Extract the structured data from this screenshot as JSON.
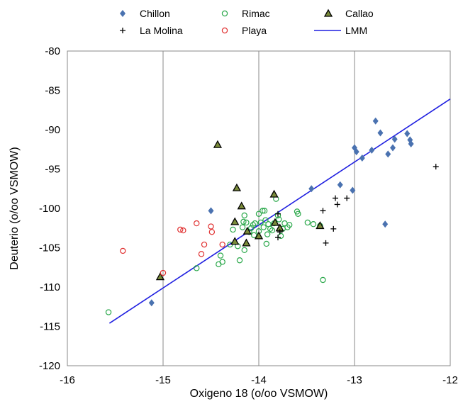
{
  "chart_data": {
    "type": "scatter",
    "xlabel": "Oxigeno 18  (o/oo VSMOW)",
    "ylabel": "Deuterio  (o/oo VSMOW)",
    "xlim": [
      -16,
      -12
    ],
    "ylim": [
      -120,
      -80
    ],
    "x_ticks": [
      -16,
      -15,
      -14,
      -13,
      -12
    ],
    "y_ticks": [
      -80,
      -85,
      -90,
      -95,
      -100,
      -105,
      -110,
      -115,
      -120
    ],
    "grid": "vertical",
    "legend_position": "top",
    "series": [
      {
        "name": "Chillon",
        "marker": "diamond",
        "color": "#4a72b0",
        "points": [
          [
            -15.12,
            -112.0
          ],
          [
            -14.5,
            -100.3
          ],
          [
            -13.45,
            -97.5
          ],
          [
            -13.15,
            -97.0
          ],
          [
            -13.02,
            -97.7
          ],
          [
            -13.0,
            -92.3
          ],
          [
            -12.98,
            -92.8
          ],
          [
            -12.92,
            -93.6
          ],
          [
            -12.82,
            -92.6
          ],
          [
            -12.78,
            -88.9
          ],
          [
            -12.73,
            -90.4
          ],
          [
            -12.65,
            -93.1
          ],
          [
            -12.6,
            -92.3
          ],
          [
            -12.58,
            -91.2
          ],
          [
            -12.45,
            -90.5
          ],
          [
            -12.42,
            -91.3
          ],
          [
            -12.41,
            -91.8
          ],
          [
            -12.68,
            -102.0
          ]
        ]
      },
      {
        "name": "Rimac",
        "marker": "open-circle",
        "color": "#2aa84a",
        "points": [
          [
            -15.57,
            -113.2
          ],
          [
            -14.65,
            -107.6
          ],
          [
            -14.42,
            -107.1
          ],
          [
            -14.4,
            -106.0
          ],
          [
            -14.38,
            -106.8
          ],
          [
            -14.3,
            -104.6
          ],
          [
            -14.27,
            -102.7
          ],
          [
            -14.22,
            -104.8
          ],
          [
            -14.2,
            -106.6
          ],
          [
            -14.17,
            -102.4
          ],
          [
            -14.16,
            -101.7
          ],
          [
            -14.15,
            -100.9
          ],
          [
            -14.15,
            -105.3
          ],
          [
            -14.13,
            -101.8
          ],
          [
            -14.1,
            -103.0
          ],
          [
            -14.08,
            -102.5
          ],
          [
            -14.06,
            -102.1
          ],
          [
            -14.05,
            -103.4
          ],
          [
            -14.04,
            -101.9
          ],
          [
            -14.0,
            -102.9
          ],
          [
            -14.0,
            -100.7
          ],
          [
            -13.98,
            -101.8
          ],
          [
            -13.95,
            -102.4
          ],
          [
            -13.94,
            -100.3
          ],
          [
            -13.93,
            -101.5
          ],
          [
            -13.92,
            -104.5
          ],
          [
            -13.91,
            -103.3
          ],
          [
            -13.9,
            -102.0
          ],
          [
            -13.88,
            -102.6
          ],
          [
            -13.86,
            -102.8
          ],
          [
            -13.84,
            -101.9
          ],
          [
            -13.82,
            -98.8
          ],
          [
            -13.8,
            -100.9
          ],
          [
            -13.79,
            -101.4
          ],
          [
            -13.77,
            -103.5
          ],
          [
            -13.75,
            -102.6
          ],
          [
            -13.73,
            -101.9
          ],
          [
            -13.7,
            -102.4
          ],
          [
            -13.68,
            -102.1
          ],
          [
            -13.6,
            -100.4
          ],
          [
            -13.59,
            -100.7
          ],
          [
            -13.49,
            -101.8
          ],
          [
            -13.43,
            -102.0
          ],
          [
            -13.33,
            -109.1
          ],
          [
            -13.36,
            -102.2
          ],
          [
            -13.96,
            -100.3
          ]
        ]
      },
      {
        "name": "Callao",
        "marker": "triangle",
        "color": "#7a8b3a",
        "points": [
          [
            -15.03,
            -108.7
          ],
          [
            -14.43,
            -91.9
          ],
          [
            -14.23,
            -97.4
          ],
          [
            -14.18,
            -99.7
          ],
          [
            -14.25,
            -101.7
          ],
          [
            -14.25,
            -104.2
          ],
          [
            -14.12,
            -102.9
          ],
          [
            -14.13,
            -104.4
          ],
          [
            -14.0,
            -103.5
          ],
          [
            -13.84,
            -98.2
          ],
          [
            -13.83,
            -101.8
          ],
          [
            -13.78,
            -102.5
          ],
          [
            -13.36,
            -102.2
          ]
        ]
      },
      {
        "name": "La Molina",
        "marker": "plus",
        "color": "#000000",
        "points": [
          [
            -13.8,
            -100.7
          ],
          [
            -13.78,
            -103.0
          ],
          [
            -13.8,
            -103.7
          ],
          [
            -13.33,
            -100.3
          ],
          [
            -13.3,
            -104.4
          ],
          [
            -13.22,
            -102.6
          ],
          [
            -13.2,
            -98.7
          ],
          [
            -13.18,
            -99.5
          ],
          [
            -13.08,
            -98.7
          ],
          [
            -12.15,
            -94.7
          ]
        ]
      },
      {
        "name": "Playa",
        "marker": "open-circle",
        "color": "#e03030",
        "points": [
          [
            -15.42,
            -105.4
          ],
          [
            -15.0,
            -108.2
          ],
          [
            -14.82,
            -102.7
          ],
          [
            -14.79,
            -102.8
          ],
          [
            -14.65,
            -101.9
          ],
          [
            -14.6,
            -105.8
          ],
          [
            -14.57,
            -104.6
          ],
          [
            -14.5,
            -102.3
          ],
          [
            -14.49,
            -103.0
          ],
          [
            -14.38,
            -104.6
          ]
        ]
      },
      {
        "name": "LMM",
        "marker": "line",
        "color": "#1f1fe0",
        "points": [
          [
            -15.56,
            -114.6
          ],
          [
            -12.0,
            -86.1
          ]
        ]
      }
    ]
  }
}
